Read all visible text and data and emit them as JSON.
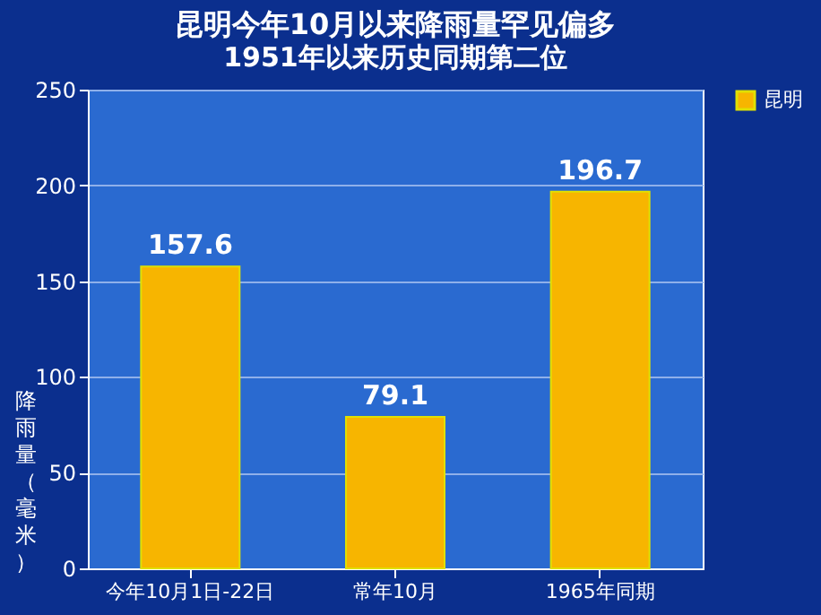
{
  "chart_data": {
    "type": "bar",
    "title": "昆明今年10月以来降雨量罕见偏多",
    "subtitle": "1951年以来历史同期第二位",
    "ylabel": "降雨量（毫米）",
    "categories": [
      "今年10月1日-22日",
      "常年10月",
      "1965年同期"
    ],
    "series": [
      {
        "name": "昆明",
        "color": "#f7b500",
        "values": [
          157.6,
          79.1,
          196.7
        ]
      }
    ],
    "ylim": [
      0,
      250
    ],
    "yticks": [
      0,
      50,
      100,
      150,
      200,
      250
    ],
    "grid": "y",
    "legend": "right",
    "data_labels": true
  }
}
